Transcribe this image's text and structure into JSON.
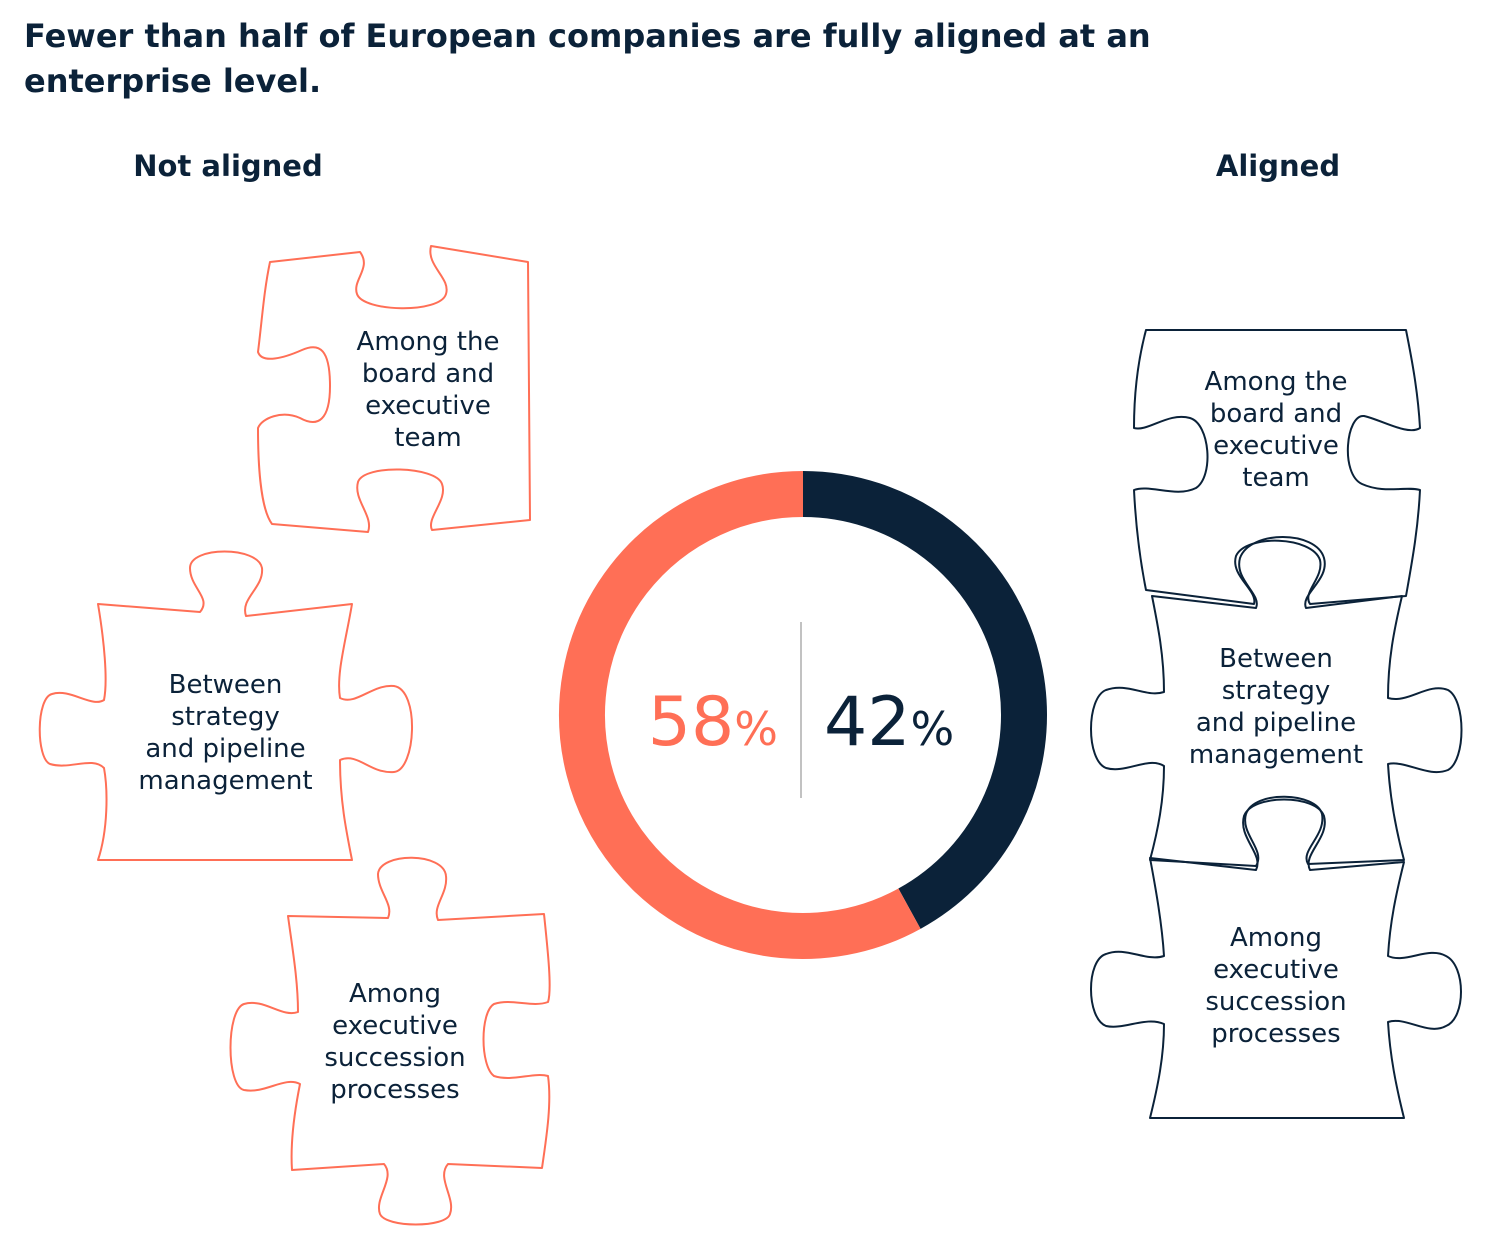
{
  "title": "Fewer than half of European companies are fully aligned at an enterprise level.",
  "colors": {
    "not_aligned": "#ff6f56",
    "aligned": "#0b2239",
    "text": "#0b2239",
    "divider": "#c2c2c2"
  },
  "groups": {
    "not_aligned": {
      "label": "Not aligned",
      "pieces": [
        "Among the\nboard and\nexecutive\nteam",
        "Between\nstrategy\nand pipeline\nmanagement",
        "Among\nexecutive\nsuccession\nprocesses"
      ]
    },
    "aligned": {
      "label": "Aligned",
      "pieces": [
        "Among the\nboard and\nexecutive\nteam",
        "Between\nstrategy\nand pipeline\nmanagement",
        "Among\nexecutive\nsuccession\nprocesses"
      ]
    }
  },
  "chart_data": {
    "type": "pie",
    "style": "donut",
    "categories": [
      "Not aligned",
      "Aligned"
    ],
    "values": [
      58,
      42
    ],
    "colors": [
      "#ff6f56",
      "#0b2239"
    ],
    "labels": [
      {
        "number": "58",
        "unit": "%"
      },
      {
        "number": "42",
        "unit": "%"
      }
    ]
  }
}
